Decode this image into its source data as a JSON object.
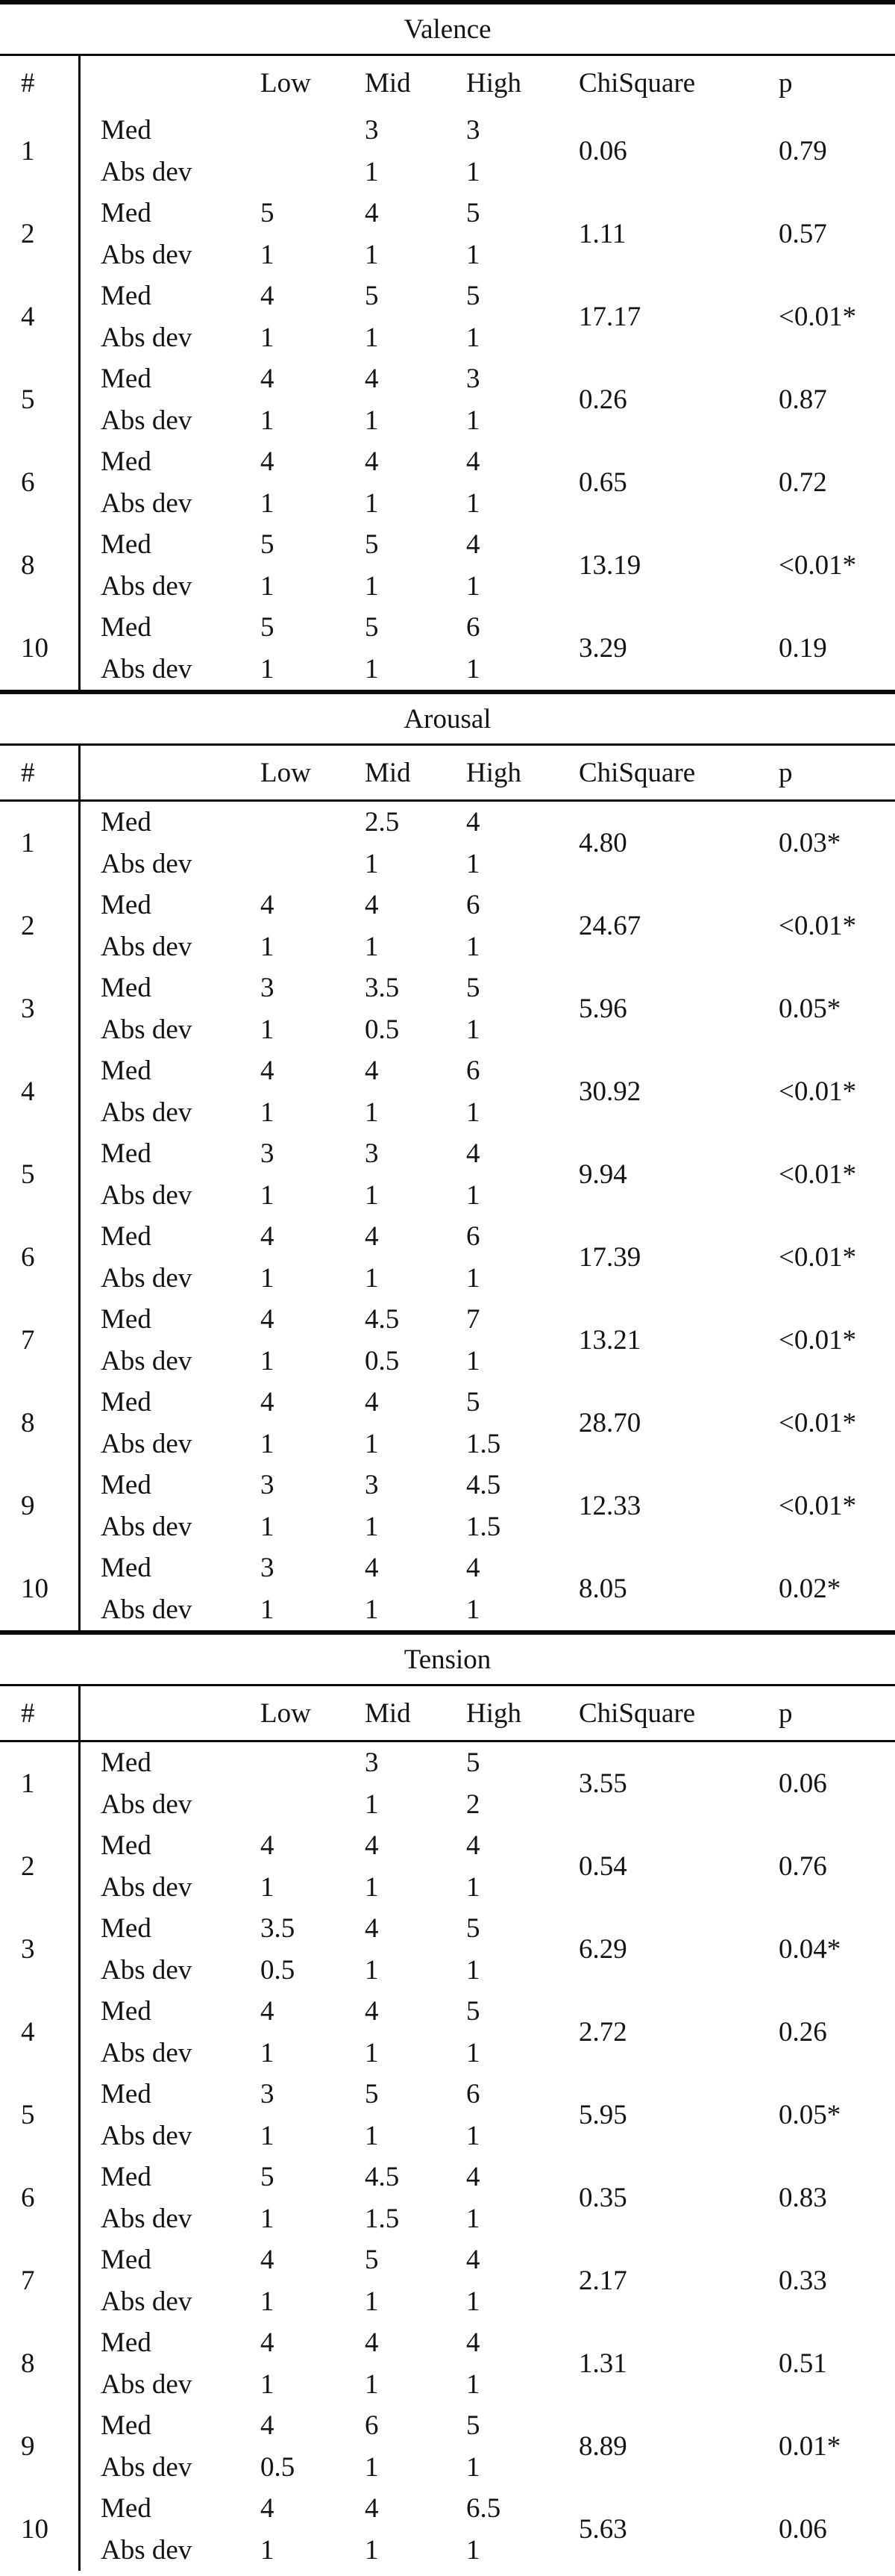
{
  "colors": {
    "background": "#ffffff",
    "text": "#141414",
    "rule": "#0a0a0a"
  },
  "header": {
    "num": "#",
    "label_col": "",
    "low": "Low",
    "mid": "Mid",
    "high": "High",
    "chisquare": "ChiSquare",
    "p": "p"
  },
  "row_labels": {
    "med": "Med",
    "abs_dev": "Abs dev"
  },
  "tables": [
    {
      "title": "Valence",
      "rows": [
        {
          "num": "1",
          "med": [
            "",
            "3",
            "3"
          ],
          "abs_dev": [
            "",
            "1",
            "1"
          ],
          "chisquare": "0.06",
          "p": "0.79"
        },
        {
          "num": "2",
          "med": [
            "5",
            "4",
            "5"
          ],
          "abs_dev": [
            "1",
            "1",
            "1"
          ],
          "chisquare": "1.11",
          "p": "0.57"
        },
        {
          "num": "4",
          "med": [
            "4",
            "5",
            "5"
          ],
          "abs_dev": [
            "1",
            "1",
            "1"
          ],
          "chisquare": "17.17",
          "p": "<0.01*"
        },
        {
          "num": "5",
          "med": [
            "4",
            "4",
            "3"
          ],
          "abs_dev": [
            "1",
            "1",
            "1"
          ],
          "chisquare": "0.26",
          "p": "0.87"
        },
        {
          "num": "6",
          "med": [
            "4",
            "4",
            "4"
          ],
          "abs_dev": [
            "1",
            "1",
            "1"
          ],
          "chisquare": "0.65",
          "p": "0.72"
        },
        {
          "num": "8",
          "med": [
            "5",
            "5",
            "4"
          ],
          "abs_dev": [
            "1",
            "1",
            "1"
          ],
          "chisquare": "13.19",
          "p": "<0.01*"
        },
        {
          "num": "10",
          "med": [
            "5",
            "5",
            "6"
          ],
          "abs_dev": [
            "1",
            "1",
            "1"
          ],
          "chisquare": "3.29",
          "p": "0.19"
        }
      ]
    },
    {
      "title": "Arousal",
      "rows": [
        {
          "num": "1",
          "med": [
            "",
            "2.5",
            "4"
          ],
          "abs_dev": [
            "",
            "1",
            "1"
          ],
          "chisquare": "4.80",
          "p": "0.03*"
        },
        {
          "num": "2",
          "med": [
            "4",
            "4",
            "6"
          ],
          "abs_dev": [
            "1",
            "1",
            "1"
          ],
          "chisquare": "24.67",
          "p": "<0.01*"
        },
        {
          "num": "3",
          "med": [
            "3",
            "3.5",
            "5"
          ],
          "abs_dev": [
            "1",
            "0.5",
            "1"
          ],
          "chisquare": "5.96",
          "p": "0.05*"
        },
        {
          "num": "4",
          "med": [
            "4",
            "4",
            "6"
          ],
          "abs_dev": [
            "1",
            "1",
            "1"
          ],
          "chisquare": "30.92",
          "p": "<0.01*"
        },
        {
          "num": "5",
          "med": [
            "3",
            "3",
            "4"
          ],
          "abs_dev": [
            "1",
            "1",
            "1"
          ],
          "chisquare": "9.94",
          "p": "<0.01*"
        },
        {
          "num": "6",
          "med": [
            "4",
            "4",
            "6"
          ],
          "abs_dev": [
            "1",
            "1",
            "1"
          ],
          "chisquare": "17.39",
          "p": "<0.01*"
        },
        {
          "num": "7",
          "med": [
            "4",
            "4.5",
            "7"
          ],
          "abs_dev": [
            "1",
            "0.5",
            "1"
          ],
          "chisquare": "13.21",
          "p": "<0.01*"
        },
        {
          "num": "8",
          "med": [
            "4",
            "4",
            "5"
          ],
          "abs_dev": [
            "1",
            "1",
            "1.5"
          ],
          "chisquare": "28.70",
          "p": "<0.01*"
        },
        {
          "num": "9",
          "med": [
            "3",
            "3",
            "4.5"
          ],
          "abs_dev": [
            "1",
            "1",
            "1.5"
          ],
          "chisquare": "12.33",
          "p": "<0.01*"
        },
        {
          "num": "10",
          "med": [
            "3",
            "4",
            "4"
          ],
          "abs_dev": [
            "1",
            "1",
            "1"
          ],
          "chisquare": "8.05",
          "p": "0.02*"
        }
      ]
    },
    {
      "title": "Tension",
      "rows": [
        {
          "num": "1",
          "med": [
            "",
            "3",
            "5"
          ],
          "abs_dev": [
            "",
            "1",
            "2"
          ],
          "chisquare": "3.55",
          "p": "0.06"
        },
        {
          "num": "2",
          "med": [
            "4",
            "4",
            "4"
          ],
          "abs_dev": [
            "1",
            "1",
            "1"
          ],
          "chisquare": "0.54",
          "p": "0.76"
        },
        {
          "num": "3",
          "med": [
            "3.5",
            "4",
            "5"
          ],
          "abs_dev": [
            "0.5",
            "1",
            "1"
          ],
          "chisquare": "6.29",
          "p": "0.04*"
        },
        {
          "num": "4",
          "med": [
            "4",
            "4",
            "5"
          ],
          "abs_dev": [
            "1",
            "1",
            "1"
          ],
          "chisquare": "2.72",
          "p": "0.26"
        },
        {
          "num": "5",
          "med": [
            "3",
            "5",
            "6"
          ],
          "abs_dev": [
            "1",
            "1",
            "1"
          ],
          "chisquare": "5.95",
          "p": "0.05*"
        },
        {
          "num": "6",
          "med": [
            "5",
            "4.5",
            "4"
          ],
          "abs_dev": [
            "1",
            "1.5",
            "1"
          ],
          "chisquare": "0.35",
          "p": "0.83"
        },
        {
          "num": "7",
          "med": [
            "4",
            "5",
            "4"
          ],
          "abs_dev": [
            "1",
            "1",
            "1"
          ],
          "chisquare": "2.17",
          "p": "0.33"
        },
        {
          "num": "8",
          "med": [
            "4",
            "4",
            "4"
          ],
          "abs_dev": [
            "1",
            "1",
            "1"
          ],
          "chisquare": "1.31",
          "p": "0.51"
        },
        {
          "num": "9",
          "med": [
            "4",
            "6",
            "5"
          ],
          "abs_dev": [
            "0.5",
            "1",
            "1"
          ],
          "chisquare": "8.89",
          "p": "0.01*"
        },
        {
          "num": "10",
          "med": [
            "4",
            "4",
            "6.5"
          ],
          "abs_dev": [
            "1",
            "1",
            "1"
          ],
          "chisquare": "5.63",
          "p": "0.06"
        }
      ]
    }
  ]
}
